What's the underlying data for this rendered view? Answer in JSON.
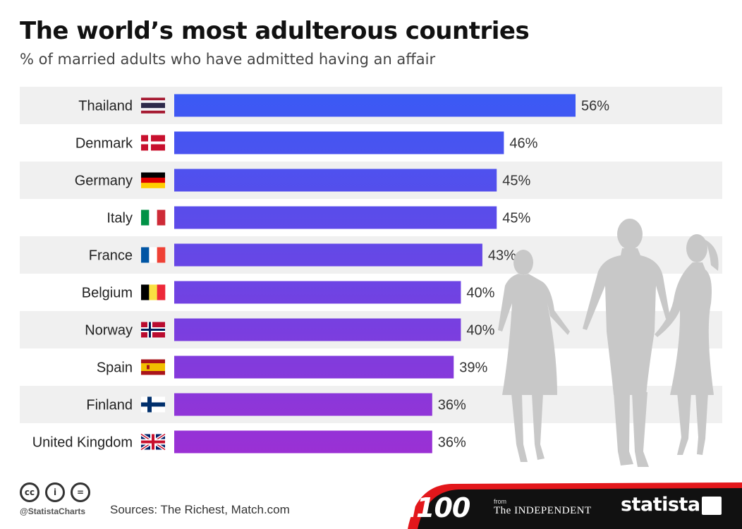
{
  "chart_data": {
    "type": "bar",
    "orientation": "horizontal",
    "title": "The world’s most adulterous countries",
    "subtitle": "% of married adults who have admitted having an affair",
    "categories": [
      "Thailand",
      "Denmark",
      "Germany",
      "Italy",
      "France",
      "Belgium",
      "Norway",
      "Spain",
      "Finland",
      "United Kingdom"
    ],
    "values": [
      56,
      46,
      45,
      45,
      43,
      40,
      40,
      39,
      36,
      36
    ],
    "value_labels": [
      "56%",
      "46%",
      "45%",
      "45%",
      "43%",
      "40%",
      "40%",
      "39%",
      "36%",
      "36%"
    ],
    "xlim": [
      0,
      56
    ],
    "grid": false,
    "legend": "none",
    "flag_icons": [
      "thailand-flag-icon",
      "denmark-flag-icon",
      "germany-flag-icon",
      "italy-flag-icon",
      "france-flag-icon",
      "belgium-flag-icon",
      "norway-flag-icon",
      "spain-flag-icon",
      "finland-flag-icon",
      "uk-flag-icon"
    ],
    "bar_color_top": "#3a5af5",
    "bar_color_bottom": "#9b30d4"
  },
  "footer": {
    "handle": "@StatistaCharts",
    "sources": "Sources: The Richest, Match.com",
    "i100": "i100",
    "from": "from",
    "independent": "The INDEPENDENT",
    "statista": "statista",
    "cc_icons": [
      "cc",
      "i",
      "="
    ]
  },
  "colors": {
    "row_stripe": "#f0f0f0",
    "footer_bg": "#111111",
    "footer_accent": "#e3171b",
    "silhouette": "#c8c8c8"
  }
}
